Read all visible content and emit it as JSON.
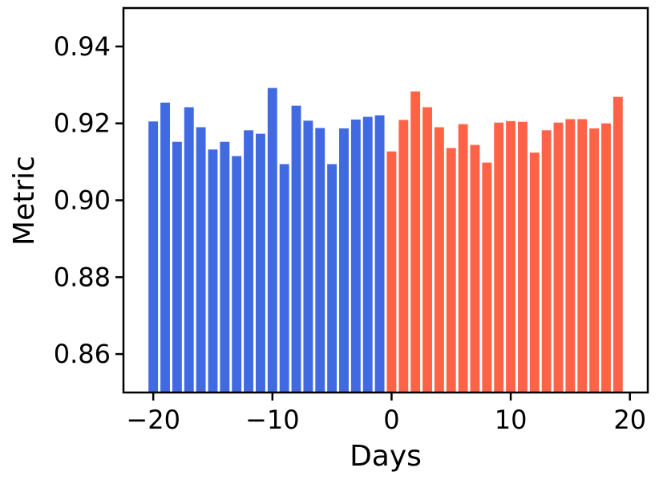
{
  "chart_data": {
    "type": "bar",
    "xlabel": "Days",
    "ylabel": "Metric",
    "xlim": [
      -22.5,
      21.5
    ],
    "ylim": [
      0.85,
      0.95
    ],
    "x_ticks": [
      -20,
      -10,
      0,
      10,
      20
    ],
    "x_tick_labels": [
      "−20",
      "−10",
      "0",
      "10",
      "20"
    ],
    "y_ticks": [
      0.86,
      0.88,
      0.9,
      0.92,
      0.94
    ],
    "y_tick_labels": [
      "0.86",
      "0.88",
      "0.90",
      "0.92",
      "0.94"
    ],
    "grid": false,
    "colors": {
      "before": "#4169e1",
      "after": "#ff6347"
    },
    "series": [
      {
        "x": [
          -20,
          -19,
          -18,
          -17,
          -16,
          -15,
          -14,
          -13,
          -12,
          -11,
          -10,
          -9,
          -8,
          -7,
          -6,
          -5,
          -4,
          -3,
          -2,
          -1
        ],
        "values": [
          0.9205,
          0.9254,
          0.9152,
          0.9242,
          0.919,
          0.9132,
          0.9152,
          0.9115,
          0.9182,
          0.9173,
          0.9292,
          0.9094,
          0.9246,
          0.9207,
          0.9188,
          0.9094,
          0.9187,
          0.921,
          0.9217,
          0.9221
        ]
      },
      {
        "x": [
          0,
          1,
          2,
          3,
          4,
          5,
          6,
          7,
          8,
          9,
          10,
          11,
          12,
          13,
          14,
          15,
          16,
          17,
          18,
          19
        ],
        "values": [
          0.9127,
          0.9209,
          0.9283,
          0.9242,
          0.919,
          0.9136,
          0.9198,
          0.9144,
          0.9098,
          0.9202,
          0.9206,
          0.9204,
          0.9124,
          0.9182,
          0.9202,
          0.9211,
          0.9211,
          0.9187,
          0.92,
          0.9269
        ]
      }
    ]
  }
}
